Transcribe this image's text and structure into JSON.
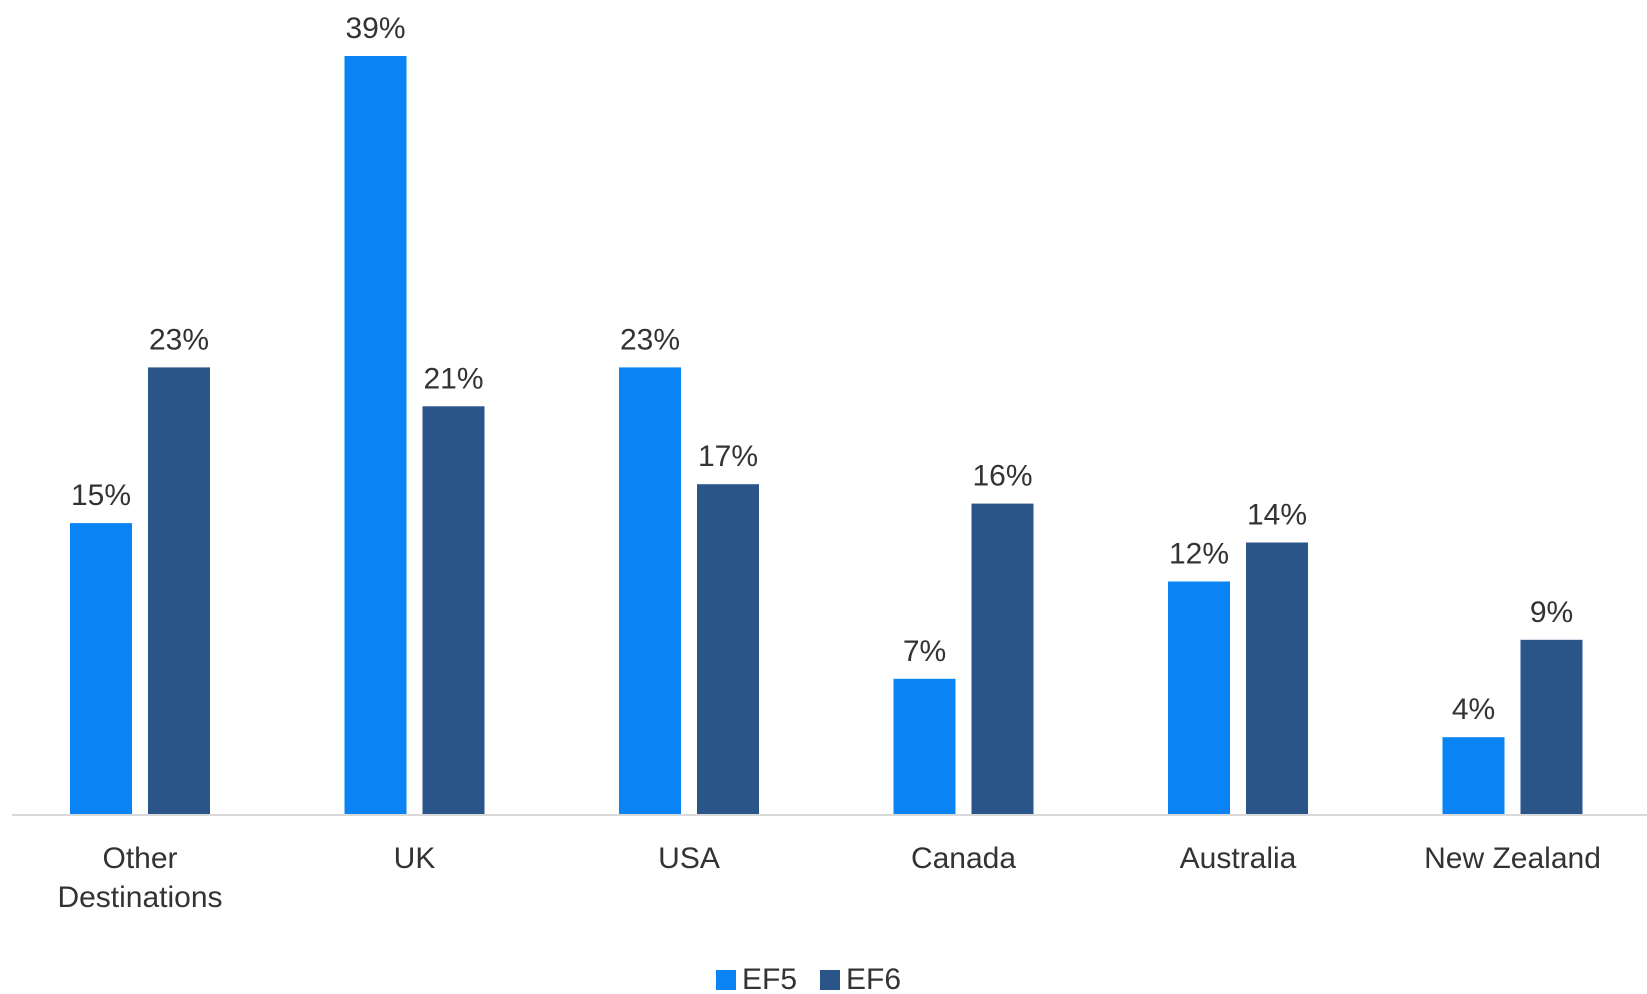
{
  "chart_data": {
    "type": "bar",
    "title": "",
    "xlabel": "",
    "ylabel": "",
    "categories": [
      [
        "Other",
        "Destinations"
      ],
      [
        "UK"
      ],
      [
        "USA"
      ],
      [
        "Canada"
      ],
      [
        "Australia"
      ],
      [
        "New Zealand"
      ]
    ],
    "series": [
      {
        "name": "EF5",
        "color": "#0a84f5",
        "values": [
          15,
          39,
          23,
          7,
          12,
          4
        ],
        "labels": [
          "15%",
          "39%",
          "23%",
          "7%",
          "12%",
          "4%"
        ]
      },
      {
        "name": "EF6",
        "color": "#2a5589",
        "values": [
          23,
          21,
          17,
          16,
          14,
          9
        ],
        "labels": [
          "23%",
          "21%",
          "17%",
          "16%",
          "14%",
          "9%"
        ]
      }
    ],
    "ylim": [
      0,
      39
    ],
    "grid": false,
    "legend_position": "bottom-center",
    "axis_color": "#d9d9d9",
    "label_color": "#333333"
  }
}
